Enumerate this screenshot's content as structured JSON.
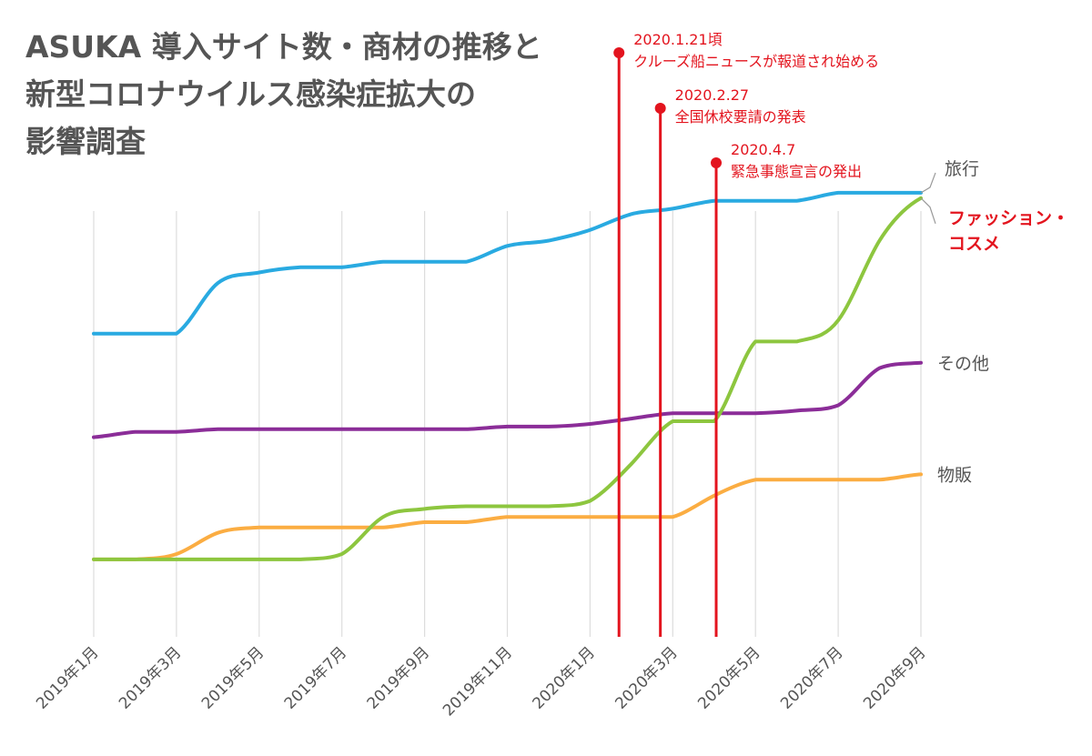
{
  "title_lines": [
    "ASUKA 導入サイト数・商材の推移と",
    "新型コロナウイルス感染症拡大の",
    "影響調査"
  ],
  "colors": {
    "travel": "#29aae1",
    "fashion": "#8dc63f",
    "other": "#8b2d98",
    "goods": "#fbad42",
    "event": "#e3141e",
    "grid": "#dddddd",
    "text": "#555555"
  },
  "chart_data": {
    "type": "line",
    "title": "ASUKA 導入サイト数・商材の推移と新型コロナウイルス感染症拡大の影響調査",
    "xlabel": "",
    "ylabel": "",
    "x_ticks": [
      "2019年1月",
      "2019年3月",
      "2019年5月",
      "2019年7月",
      "2019年9月",
      "2019年11月",
      "2020年1月",
      "2020年3月",
      "2020年5月",
      "2020年7月",
      "2020年9月"
    ],
    "x_range": [
      0,
      20
    ],
    "y_range": [
      0,
      100
    ],
    "y_axis_labels_shown": false,
    "grid": "vertical",
    "series": [
      {
        "name": "旅行",
        "key": "travel",
        "label_style": "normal",
        "points": [
          [
            0,
            60.5
          ],
          [
            1,
            60.5
          ],
          [
            2,
            60.5
          ],
          [
            3,
            70
          ],
          [
            4,
            72
          ],
          [
            5,
            73
          ],
          [
            6,
            73
          ],
          [
            7,
            74
          ],
          [
            8,
            74
          ],
          [
            9,
            74
          ],
          [
            10,
            77
          ],
          [
            11,
            78
          ],
          [
            12,
            80
          ],
          [
            13,
            83
          ],
          [
            14,
            84
          ],
          [
            15,
            85.5
          ],
          [
            16,
            85.5
          ],
          [
            17,
            85.5
          ],
          [
            18,
            87
          ],
          [
            19,
            87
          ],
          [
            20,
            87
          ]
        ]
      },
      {
        "name": "ファッション・コスメ",
        "key": "fashion",
        "label_style": "highlight",
        "points": [
          [
            0,
            18
          ],
          [
            1,
            18
          ],
          [
            2,
            18
          ],
          [
            3,
            18
          ],
          [
            4,
            18
          ],
          [
            5,
            18
          ],
          [
            6,
            19
          ],
          [
            7,
            26
          ],
          [
            8,
            27.5
          ],
          [
            9,
            28
          ],
          [
            10,
            28
          ],
          [
            11,
            28
          ],
          [
            12,
            29
          ],
          [
            13,
            36
          ],
          [
            14,
            44
          ],
          [
            15,
            44
          ],
          [
            16,
            59
          ],
          [
            17,
            59
          ],
          [
            18,
            63
          ],
          [
            19,
            78
          ],
          [
            20,
            86
          ]
        ]
      },
      {
        "name": "その他",
        "key": "other",
        "label_style": "normal",
        "points": [
          [
            0,
            41
          ],
          [
            1,
            42
          ],
          [
            2,
            42
          ],
          [
            3,
            42.5
          ],
          [
            4,
            42.5
          ],
          [
            5,
            42.5
          ],
          [
            6,
            42.5
          ],
          [
            7,
            42.5
          ],
          [
            8,
            42.5
          ],
          [
            9,
            42.5
          ],
          [
            10,
            43
          ],
          [
            11,
            43
          ],
          [
            12,
            43.5
          ],
          [
            13,
            44.5
          ],
          [
            14,
            45.5
          ],
          [
            15,
            45.5
          ],
          [
            16,
            45.5
          ],
          [
            17,
            46
          ],
          [
            18,
            47
          ],
          [
            19,
            54
          ],
          [
            20,
            55
          ]
        ]
      },
      {
        "name": "物販",
        "key": "goods",
        "label_style": "normal",
        "points": [
          [
            0,
            18
          ],
          [
            1,
            18
          ],
          [
            2,
            19
          ],
          [
            3,
            23
          ],
          [
            4,
            24
          ],
          [
            5,
            24
          ],
          [
            6,
            24
          ],
          [
            7,
            24
          ],
          [
            8,
            25
          ],
          [
            9,
            25
          ],
          [
            10,
            26
          ],
          [
            11,
            26
          ],
          [
            12,
            26
          ],
          [
            13,
            26
          ],
          [
            14,
            26
          ],
          [
            15,
            30
          ],
          [
            16,
            33
          ],
          [
            17,
            33
          ],
          [
            18,
            33
          ],
          [
            19,
            33
          ],
          [
            20,
            34
          ]
        ]
      }
    ],
    "events": [
      {
        "date": "2020.1.21頃",
        "text": "クルーズ船ニュースが報道され始める",
        "x": 12.7
      },
      {
        "date": "2020.2.27",
        "text": "全国休校要請の発表",
        "x": 13.7
      },
      {
        "date": "2020.4.7",
        "text": "緊急事態宣言の発出",
        "x": 15.05
      }
    ]
  }
}
